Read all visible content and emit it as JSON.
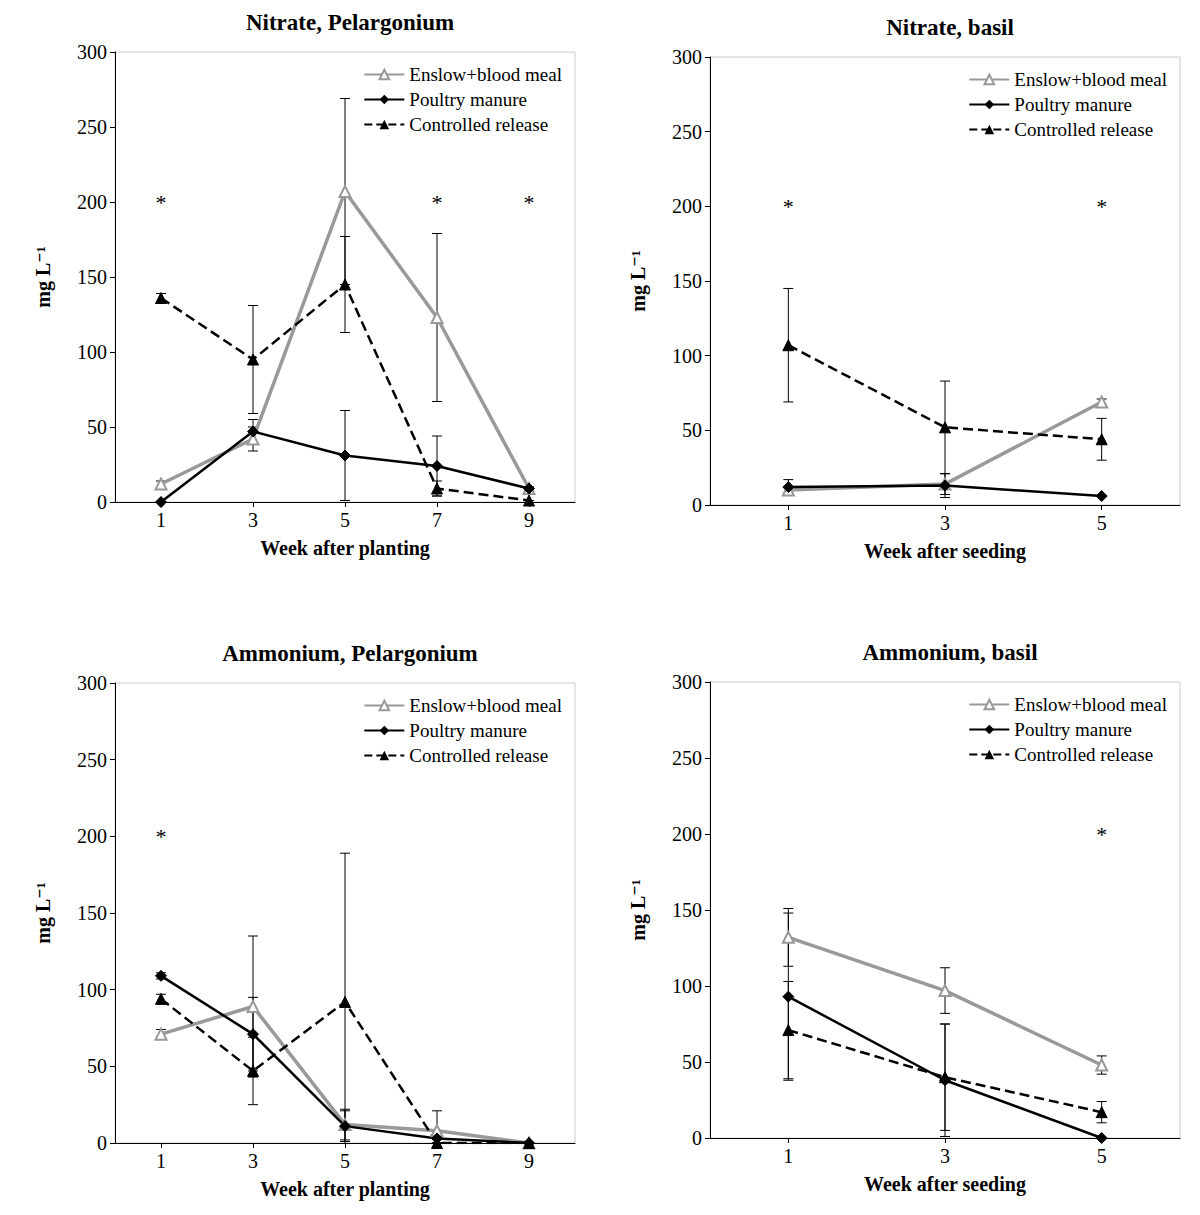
{
  "chart_data": [
    {
      "type": "line",
      "title": "Nitrate, Pelargonium",
      "x_label": "Week after planting",
      "y_label": "mg L⁻¹",
      "x": [
        1,
        3,
        5,
        7,
        9
      ],
      "xlim": [
        0,
        10
      ],
      "xticks": [
        1,
        3,
        5,
        7,
        9
      ],
      "ylim": [
        0,
        300
      ],
      "yticks": [
        0,
        50,
        100,
        150,
        200,
        250,
        300
      ],
      "grid": false,
      "legend": "upper right",
      "series": [
        {
          "name": "Enslow+blood meal",
          "color": "#999999",
          "marker": "triangle-open",
          "line_style": "solid",
          "values": [
            12,
            42,
            207,
            123,
            9
          ],
          "error": [
            2,
            8,
            62,
            56,
            1
          ]
        },
        {
          "name": "Poultry manure",
          "color": "#000000",
          "marker": "diamond",
          "line_style": "solid",
          "values": [
            0,
            47,
            31,
            24,
            9
          ],
          "error": [
            0,
            8,
            30,
            20,
            1
          ]
        },
        {
          "name": "Controlled release",
          "color": "#000000",
          "marker": "triangle",
          "line_style": "dashed",
          "values": [
            136,
            95,
            145,
            9,
            1
          ],
          "error": [
            3,
            36,
            32,
            5,
            0
          ]
        }
      ],
      "annotations": [
        {
          "text": "*",
          "x": 1,
          "y": 200
        },
        {
          "text": "*",
          "x": 7,
          "y": 200
        },
        {
          "text": "*",
          "x": 9,
          "y": 200
        }
      ]
    },
    {
      "type": "line",
      "title": "Nitrate, basil",
      "x_label": "Week after seeding",
      "y_label": "mg L⁻¹",
      "x": [
        1,
        3,
        5
      ],
      "xlim": [
        0,
        6
      ],
      "xticks": [
        1,
        3,
        5
      ],
      "ylim": [
        0,
        300
      ],
      "yticks": [
        0,
        50,
        100,
        150,
        200,
        250,
        300
      ],
      "grid": false,
      "legend": "upper right",
      "series": [
        {
          "name": "Enslow+blood meal",
          "color": "#999999",
          "marker": "triangle-open",
          "line_style": "solid",
          "values": [
            10,
            14,
            69
          ],
          "error": [
            2,
            7,
            2
          ]
        },
        {
          "name": "Poultry manure",
          "color": "#000000",
          "marker": "diamond",
          "line_style": "solid",
          "values": [
            12,
            13,
            6
          ],
          "error": [
            5,
            8,
            0
          ]
        },
        {
          "name": "Controlled release",
          "color": "#000000",
          "marker": "triangle",
          "line_style": "dashed",
          "values": [
            107,
            52,
            44
          ],
          "error": [
            38,
            31,
            14
          ]
        }
      ],
      "annotations": [
        {
          "text": "*",
          "x": 1,
          "y": 200
        },
        {
          "text": "*",
          "x": 5,
          "y": 200
        }
      ]
    },
    {
      "type": "line",
      "title": "Ammonium, Pelargonium",
      "x_label": "Week after planting",
      "y_label": "mg L⁻¹",
      "x": [
        1,
        3,
        5,
        7,
        9
      ],
      "xlim": [
        0,
        10
      ],
      "xticks": [
        1,
        3,
        5,
        7,
        9
      ],
      "ylim": [
        0,
        300
      ],
      "yticks": [
        0,
        50,
        100,
        150,
        200,
        250,
        300
      ],
      "grid": false,
      "legend": "upper right",
      "series": [
        {
          "name": "Enslow+blood meal",
          "color": "#999999",
          "marker": "triangle-open",
          "line_style": "solid",
          "values": [
            71,
            89,
            12,
            8,
            0
          ],
          "error": [
            3,
            46,
            10,
            13,
            0
          ]
        },
        {
          "name": "Poultry manure",
          "color": "#000000",
          "marker": "diamond",
          "line_style": "solid",
          "values": [
            109,
            71,
            11,
            3,
            0
          ],
          "error": [
            2,
            24,
            10,
            3,
            0
          ]
        },
        {
          "name": "Controlled release",
          "color": "#000000",
          "marker": "triangle",
          "line_style": "dashed",
          "values": [
            94,
            47,
            92,
            0,
            0
          ],
          "error": [
            3,
            22,
            97,
            0,
            0
          ]
        }
      ],
      "annotations": [
        {
          "text": "*",
          "x": 1,
          "y": 200
        }
      ]
    },
    {
      "type": "line",
      "title": "Ammonium, basil",
      "x_label": "Week after seeding",
      "y_label": "mg L⁻¹",
      "x": [
        1,
        3,
        5
      ],
      "xlim": [
        0,
        6
      ],
      "xticks": [
        1,
        3,
        5
      ],
      "ylim": [
        0,
        300
      ],
      "yticks": [
        0,
        50,
        100,
        150,
        200,
        250,
        300
      ],
      "grid": false,
      "legend": "upper right",
      "series": [
        {
          "name": "Enslow+blood meal",
          "color": "#999999",
          "marker": "triangle-open",
          "line_style": "solid",
          "values": [
            132,
            97,
            48
          ],
          "error": [
            19,
            15,
            6
          ]
        },
        {
          "name": "Poultry manure",
          "color": "#000000",
          "marker": "diamond",
          "line_style": "solid",
          "values": [
            93,
            38,
            0
          ],
          "error": [
            55,
            37,
            0
          ]
        },
        {
          "name": "Controlled release",
          "color": "#000000",
          "marker": "triangle",
          "line_style": "dashed",
          "values": [
            71,
            40,
            17
          ],
          "error": [
            32,
            35,
            7
          ]
        }
      ],
      "annotations": [
        {
          "text": "*",
          "x": 5,
          "y": 200
        }
      ]
    }
  ]
}
